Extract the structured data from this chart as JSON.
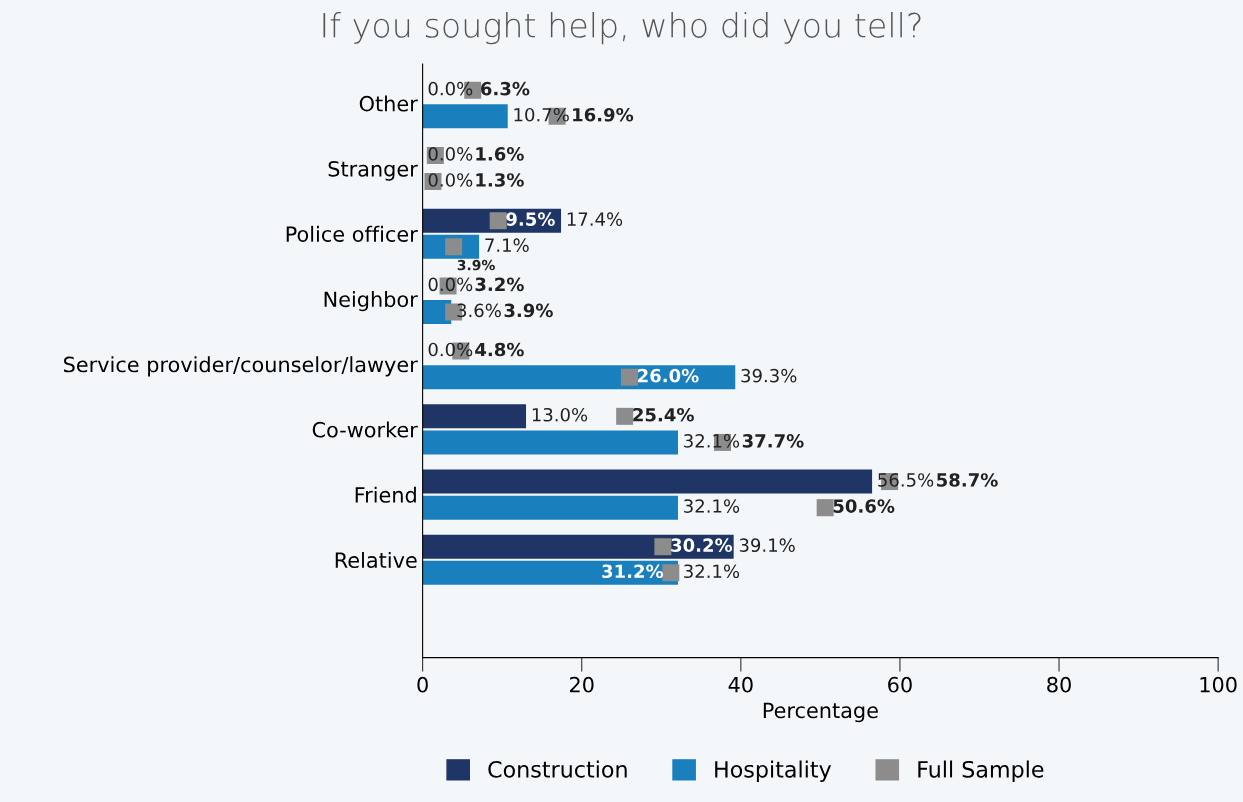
{
  "chart_data": {
    "type": "bar",
    "orientation": "horizontal",
    "title": "If you sought help, who did you tell?",
    "xlabel": "Percentage",
    "categories": [
      "Other",
      "Stranger",
      "Police officer",
      "Neighbor",
      "Service provider/counselor/lawyer",
      "Co-worker",
      "Friend",
      "Relative"
    ],
    "series": [
      {
        "name": "Construction",
        "color": "#1f3566",
        "values": [
          0.0,
          0.0,
          17.4,
          0.0,
          0.0,
          13.0,
          56.5,
          39.1
        ],
        "value_labels": [
          "0.0%",
          "0.0%",
          "17.4%",
          "0.0%",
          "0.0%",
          "13.0%",
          "56.5%",
          "39.1%"
        ]
      },
      {
        "name": "Hospitality",
        "color": "#1a7fbd",
        "values": [
          10.7,
          0.0,
          7.1,
          3.6,
          39.3,
          32.1,
          32.1,
          32.1
        ],
        "value_labels": [
          "10.7%",
          "0.0%",
          "7.1%",
          "3.6%",
          "39.3%",
          "32.1%",
          "32.1%",
          "32.1%"
        ]
      },
      {
        "name": "Full Sample",
        "type": "scatter",
        "marker": "square",
        "color": "#8c8c8c",
        "values": [
          6.3,
          1.6,
          9.5,
          3.2,
          4.8,
          25.4,
          58.7,
          30.2
        ],
        "value_labels": [
          "6.3%",
          "1.6%",
          "9.5%",
          "3.2%",
          "4.8%",
          "25.4%",
          "58.7%",
          "30.2%"
        ]
      },
      {
        "type": "scatter",
        "marker": "square",
        "color": "#8c8c8c",
        "values": [
          16.9,
          1.3,
          3.9,
          3.9,
          26.0,
          37.7,
          50.6,
          31.2
        ],
        "value_labels": [
          "16.9%",
          "1.3%",
          "3.9%",
          "3.9%",
          "26.0%",
          "37.7%",
          "50.6%",
          "31.2%"
        ]
      }
    ],
    "xlim": [
      0,
      100
    ],
    "xticks": [
      0,
      20,
      40,
      60,
      80,
      100
    ],
    "grid": false,
    "legend": "bottom"
  }
}
